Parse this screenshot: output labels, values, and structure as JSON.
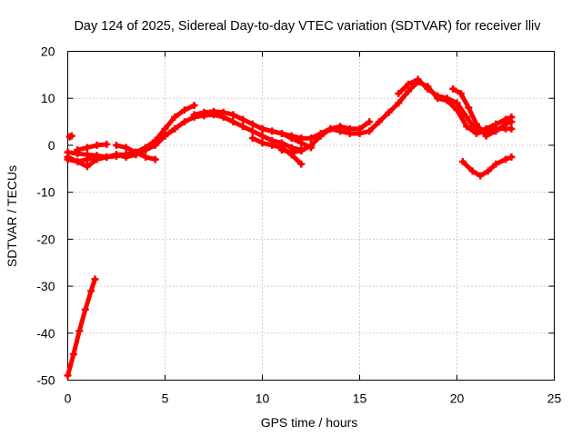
{
  "chart_data": {
    "type": "line",
    "title": "Day 124 of 2025, Sidereal Day-to-day VTEC variation (SDTVAR) for receiver lliv",
    "xlabel": "GPS time / hours",
    "ylabel": "SDTVAR / TECUs",
    "xlim": [
      0,
      25
    ],
    "ylim": [
      -50,
      20
    ],
    "xticks": [
      0,
      5,
      10,
      15,
      20,
      25
    ],
    "yticks": [
      -50,
      -40,
      -30,
      -20,
      -10,
      0,
      10,
      20
    ],
    "grid": true,
    "color": "#ff0000",
    "series": [
      {
        "name": "arc-descent",
        "x": [
          0.0,
          0.3,
          0.6,
          0.9,
          1.2,
          1.4
        ],
        "y": [
          -49.0,
          -44.5,
          -39.5,
          -35.0,
          -31.0,
          -28.5
        ]
      },
      {
        "name": "point-start",
        "x": [
          0.1,
          0.2
        ],
        "y": [
          1.8,
          2.0
        ]
      },
      {
        "name": "arc-a",
        "x": [
          0.0,
          0.5,
          1.0,
          1.5,
          2.0,
          2.5,
          3.0,
          3.5,
          4.0,
          4.5,
          5.0,
          5.5,
          6.0,
          6.5,
          7.0,
          7.5,
          8.0,
          8.5,
          9.0,
          9.5,
          10.0,
          10.5,
          11.0,
          11.5,
          12.0
        ],
        "y": [
          -1.5,
          -1.8,
          -2.0,
          -2.2,
          -2.5,
          -2.3,
          -2.0,
          -1.5,
          -0.5,
          0.5,
          2.0,
          3.5,
          5.0,
          6.0,
          6.3,
          6.5,
          6.0,
          5.0,
          4.0,
          3.0,
          2.0,
          1.0,
          0.5,
          -0.5,
          -1.0
        ]
      },
      {
        "name": "arc-b",
        "x": [
          0.0,
          0.5,
          1.0,
          1.5,
          2.0,
          2.5,
          3.0,
          3.5,
          4.0,
          4.5,
          5.0,
          5.5,
          6.0,
          6.5
        ],
        "y": [
          -3.0,
          -3.5,
          -3.0,
          -2.5,
          -2.5,
          -2.0,
          -2.0,
          -1.5,
          -0.5,
          1.0,
          3.5,
          6.0,
          7.5,
          8.5
        ]
      },
      {
        "name": "arc-c",
        "x": [
          0.0,
          0.5,
          1.0,
          1.5,
          2.0,
          2.5,
          3.0,
          3.5,
          4.0,
          4.5,
          5.0,
          5.5
        ],
        "y": [
          -2.5,
          -3.5,
          -4.5,
          -3.0,
          -2.5,
          -2.0,
          -2.5,
          -2.0,
          -1.0,
          0.0,
          2.0,
          3.5
        ]
      },
      {
        "name": "arc-d",
        "x": [
          0.5,
          1.0,
          1.5,
          2.0
        ],
        "y": [
          -1.0,
          -0.5,
          0.0,
          0.2
        ]
      },
      {
        "name": "arc-e",
        "x": [
          2.5,
          3.0,
          3.5,
          4.0,
          4.5
        ],
        "y": [
          0.0,
          -0.5,
          -1.5,
          -2.5,
          -3.0
        ]
      },
      {
        "name": "arc-f",
        "x": [
          6.5,
          7.0,
          7.5,
          8.0,
          8.5,
          9.0,
          9.5,
          10.0,
          10.5,
          11.0,
          11.5,
          12.0,
          12.5,
          13.0,
          13.5,
          14.0,
          14.5,
          15.0,
          15.5
        ],
        "y": [
          6.5,
          7.0,
          7.2,
          7.0,
          6.5,
          5.5,
          4.5,
          3.5,
          3.0,
          2.5,
          2.0,
          1.5,
          1.5,
          2.5,
          3.5,
          4.0,
          3.5,
          3.5,
          5.0
        ]
      },
      {
        "name": "arc-g",
        "x": [
          9.5,
          10.0,
          10.5,
          11.0,
          11.5,
          12.0
        ],
        "y": [
          1.5,
          0.5,
          0.0,
          -0.5,
          -2.0,
          -4.0
        ]
      },
      {
        "name": "arc-h",
        "x": [
          10.0,
          10.5,
          11.0,
          11.5,
          12.0,
          12.5
        ],
        "y": [
          3.5,
          3.0,
          2.5,
          1.5,
          0.5,
          -0.5
        ]
      },
      {
        "name": "arc-i",
        "x": [
          11.0,
          11.5,
          12.0,
          12.5,
          13.0,
          13.5,
          14.0,
          14.5,
          15.0,
          15.5,
          16.0,
          16.5,
          17.0,
          17.5,
          18.0,
          18.5,
          19.0,
          19.5,
          20.0,
          20.5,
          21.0,
          21.5,
          22.0,
          22.5,
          22.8
        ],
        "y": [
          -1.0,
          -1.5,
          -1.2,
          0.0,
          2.0,
          3.5,
          3.0,
          2.5,
          2.5,
          3.0,
          5.0,
          7.0,
          9.0,
          11.5,
          13.5,
          12.5,
          10.0,
          9.5,
          7.5,
          4.0,
          2.5,
          3.0,
          3.5,
          3.5,
          3.5
        ]
      },
      {
        "name": "arc-j",
        "x": [
          17.0,
          17.5,
          18.0,
          18.5,
          19.0,
          19.5,
          20.0,
          20.5,
          21.0,
          21.5,
          22.0,
          22.5,
          22.8
        ],
        "y": [
          11.0,
          13.0,
          14.0,
          12.0,
          10.5,
          10.0,
          9.0,
          6.0,
          3.0,
          3.5,
          4.5,
          5.5,
          6.0
        ]
      },
      {
        "name": "arc-k",
        "x": [
          19.8,
          20.2,
          20.6,
          21.0,
          21.5,
          22.0,
          22.5,
          22.8
        ],
        "y": [
          12.0,
          11.0,
          8.0,
          4.5,
          2.0,
          3.0,
          4.5,
          5.0
        ]
      },
      {
        "name": "arc-l",
        "x": [
          20.3,
          20.8,
          21.2,
          21.6,
          22.0,
          22.5,
          22.8
        ],
        "y": [
          -3.5,
          -5.5,
          -6.5,
          -5.5,
          -4.0,
          -3.0,
          -2.5
        ]
      }
    ]
  }
}
